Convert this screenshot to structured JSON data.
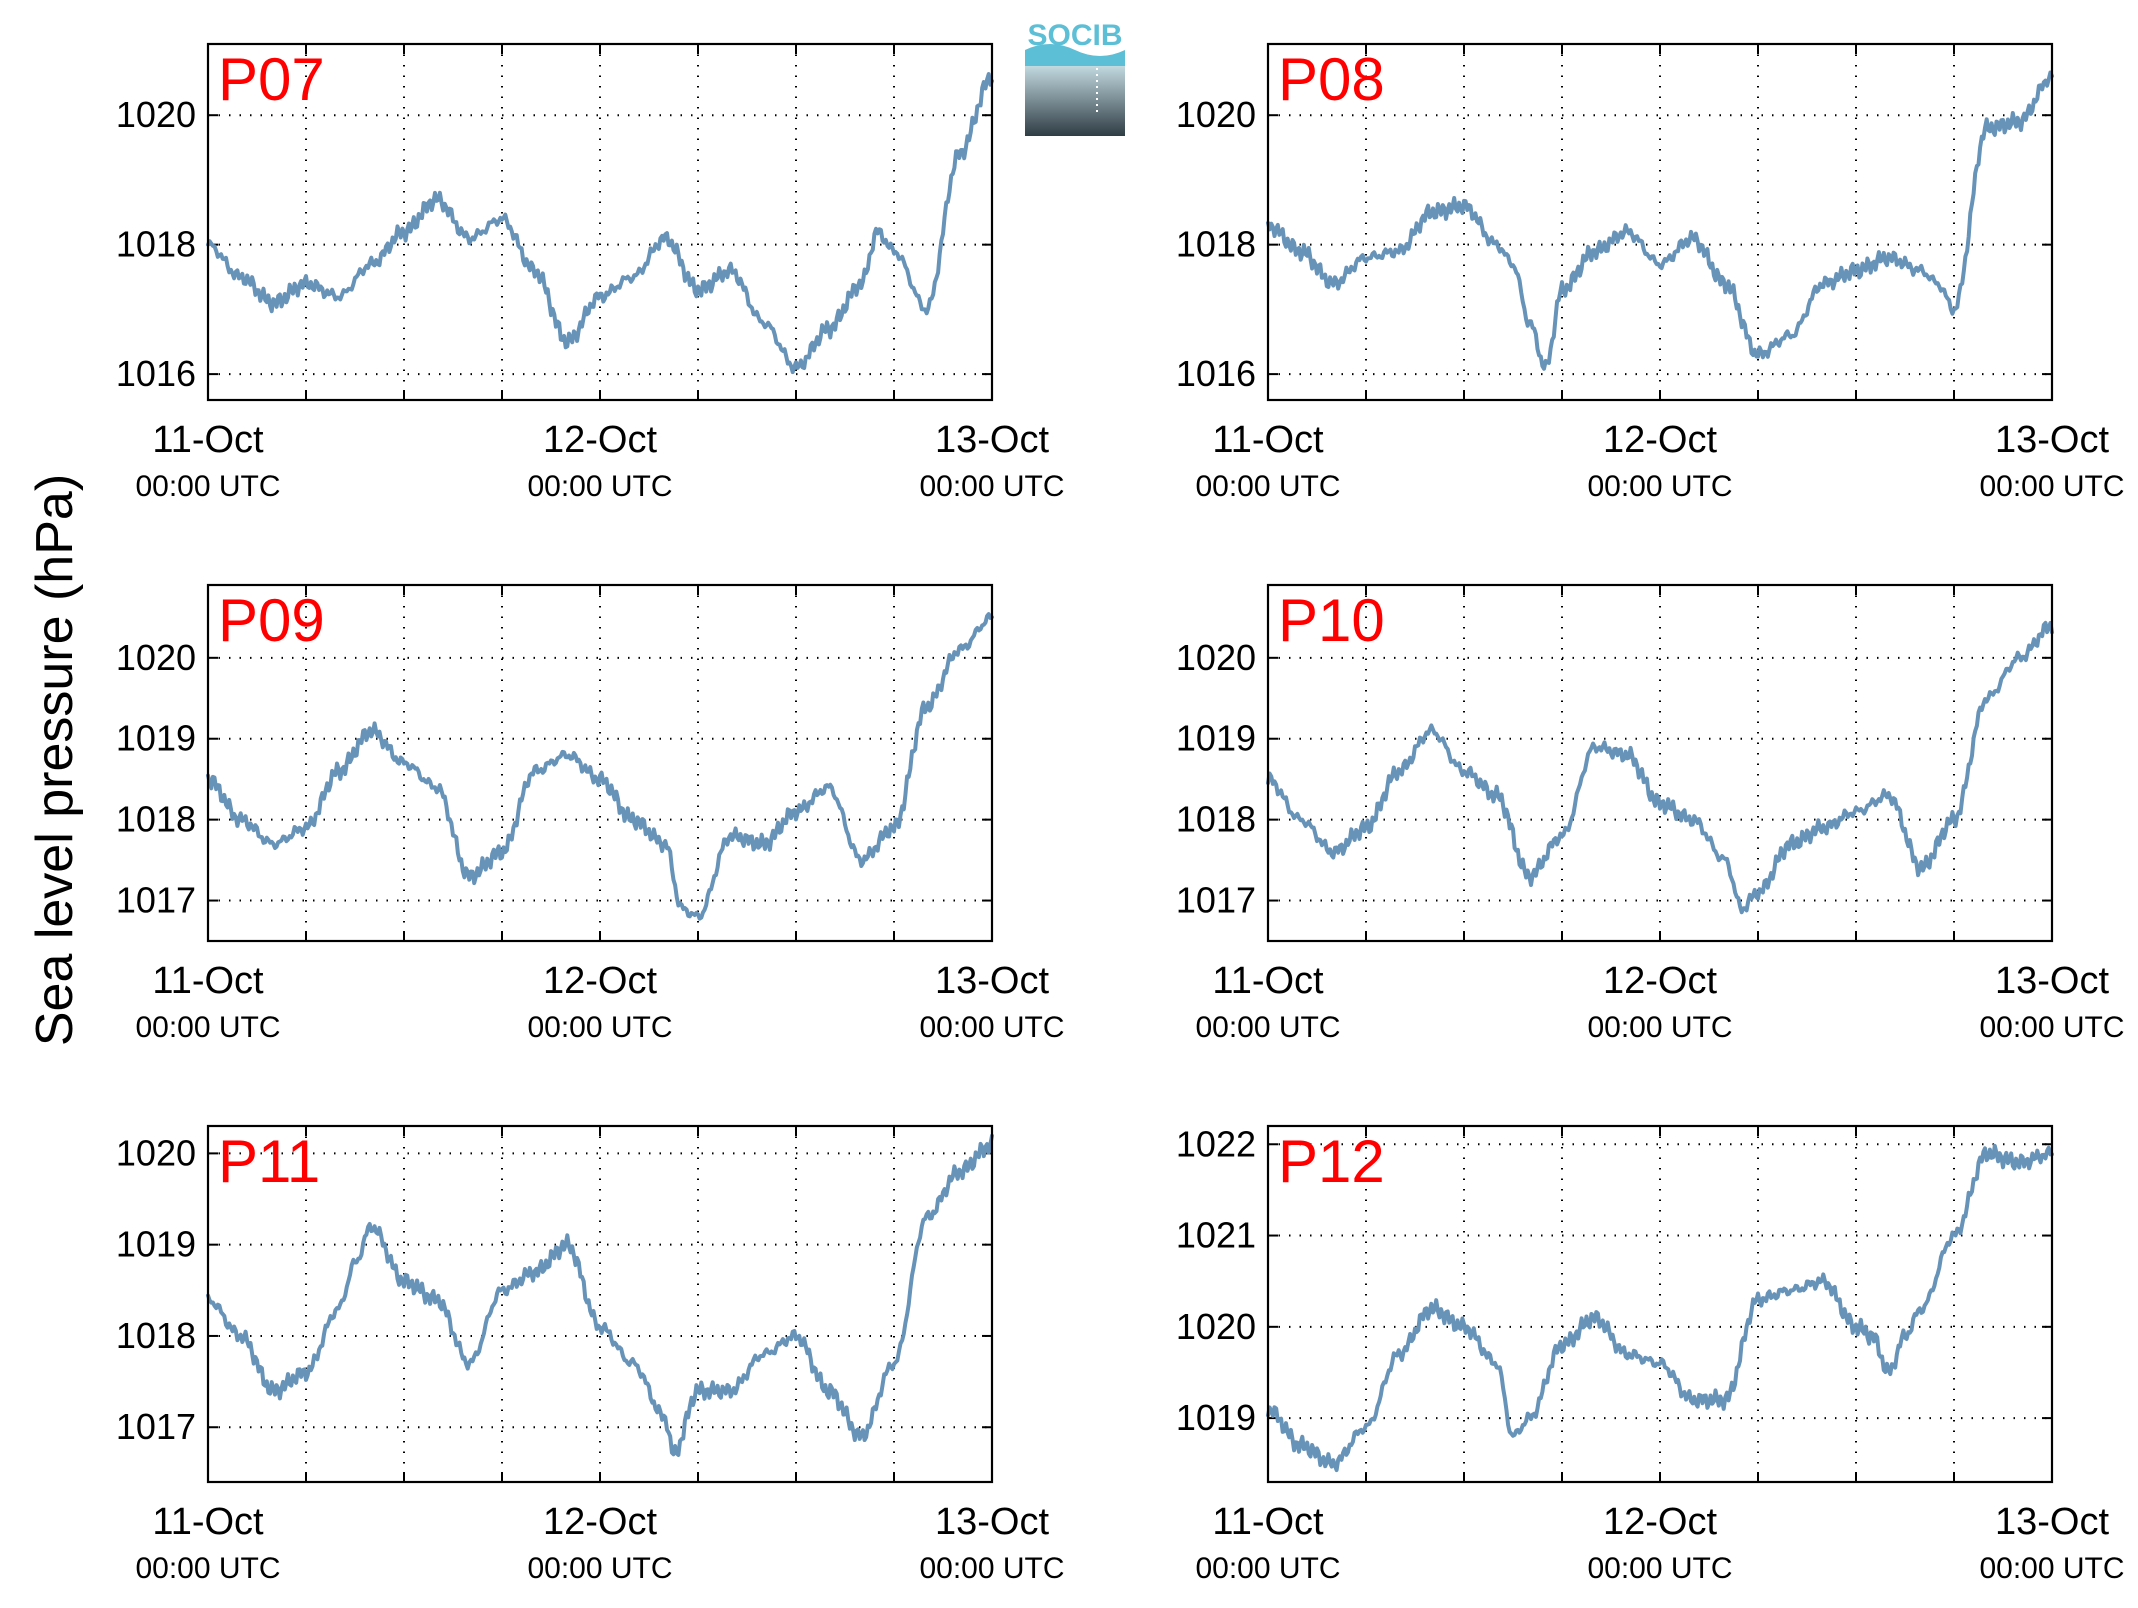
{
  "figure": {
    "ylabel": "Sea level pressure (hPa)",
    "logo_text": "SOCIB",
    "colors": {
      "line": "#6793b8",
      "panel_label": "#ff0000",
      "axes": "#000000",
      "logo_top": "#5dbfd6",
      "logo_bottom": "#2f3c44"
    }
  },
  "chart_data": [
    {
      "type": "line",
      "panel_label": "P07",
      "ylabel": "Sea level pressure (hPa)",
      "x_range": [
        "2015-10-11T00:00",
        "2015-10-13T00:00"
      ],
      "ylim": [
        1015.6,
        1021.1
      ],
      "yticks": [
        1016,
        1018,
        1020
      ],
      "xtick_labels": [
        {
          "date": "11-Oct",
          "time": "00:00 UTC"
        },
        {
          "date": "12-Oct",
          "time": "00:00 UTC"
        },
        {
          "date": "13-Oct",
          "time": "00:00 UTC"
        }
      ],
      "grid": true,
      "x_hours": [
        0,
        2,
        4,
        6,
        8,
        10,
        12,
        14,
        16,
        18,
        20,
        22,
        24,
        26,
        28,
        30,
        32,
        34,
        36,
        38,
        40,
        41,
        42,
        44,
        46,
        48
      ],
      "y": [
        1018.0,
        1017.5,
        1017.1,
        1017.4,
        1017.2,
        1017.7,
        1018.2,
        1018.7,
        1018.1,
        1018.4,
        1017.6,
        1016.5,
        1017.2,
        1017.5,
        1018.1,
        1017.3,
        1017.6,
        1016.8,
        1016.1,
        1016.7,
        1017.4,
        1018.2,
        1017.9,
        1017.0,
        1019.4,
        1020.6
      ]
    },
    {
      "type": "line",
      "panel_label": "P08",
      "ylabel": "Sea level pressure (hPa)",
      "x_range": [
        "2015-10-11T00:00",
        "2015-10-13T00:00"
      ],
      "ylim": [
        1015.6,
        1021.1
      ],
      "yticks": [
        1016,
        1018,
        1020
      ],
      "xtick_labels": [
        {
          "date": "11-Oct",
          "time": "00:00 UTC"
        },
        {
          "date": "12-Oct",
          "time": "00:00 UTC"
        },
        {
          "date": "13-Oct",
          "time": "00:00 UTC"
        }
      ],
      "grid": true,
      "x_hours": [
        0,
        2,
        4,
        6,
        8,
        10,
        12,
        14,
        15,
        16,
        17,
        18,
        20,
        22,
        24,
        26,
        28,
        30,
        32,
        34,
        36,
        38,
        40,
        41,
        42,
        44,
        46,
        48
      ],
      "y": [
        1018.3,
        1017.9,
        1017.4,
        1017.8,
        1017.9,
        1018.5,
        1018.6,
        1018.0,
        1017.7,
        1016.8,
        1016.1,
        1017.3,
        1017.9,
        1018.2,
        1017.7,
        1018.1,
        1017.4,
        1016.3,
        1016.6,
        1017.4,
        1017.6,
        1017.8,
        1017.6,
        1017.4,
        1017.0,
        1019.8,
        1019.9,
        1020.6
      ]
    },
    {
      "type": "line",
      "panel_label": "P09",
      "ylabel": "Sea level pressure (hPa)",
      "x_range": [
        "2015-10-11T00:00",
        "2015-10-13T00:00"
      ],
      "ylim": [
        1016.5,
        1020.9
      ],
      "yticks": [
        1017,
        1018,
        1019,
        1020
      ],
      "xtick_labels": [
        {
          "date": "11-Oct",
          "time": "00:00 UTC"
        },
        {
          "date": "12-Oct",
          "time": "00:00 UTC"
        },
        {
          "date": "13-Oct",
          "time": "00:00 UTC"
        }
      ],
      "grid": true,
      "x_hours": [
        0,
        2,
        4,
        6,
        8,
        10,
        12,
        14,
        16,
        18,
        20,
        22,
        24,
        26,
        28,
        29,
        30,
        32,
        34,
        36,
        38,
        40,
        42,
        44,
        46,
        48
      ],
      "y": [
        1018.5,
        1018.0,
        1017.7,
        1017.9,
        1018.6,
        1019.1,
        1018.7,
        1018.4,
        1017.3,
        1017.6,
        1018.6,
        1018.8,
        1018.5,
        1018.0,
        1017.7,
        1016.9,
        1016.8,
        1017.8,
        1017.7,
        1018.1,
        1018.4,
        1017.5,
        1017.9,
        1019.4,
        1020.1,
        1020.5
      ]
    },
    {
      "type": "line",
      "panel_label": "P10",
      "ylabel": "Sea level pressure (hPa)",
      "x_range": [
        "2015-10-11T00:00",
        "2015-10-13T00:00"
      ],
      "ylim": [
        1016.5,
        1020.9
      ],
      "yticks": [
        1017,
        1018,
        1019,
        1020
      ],
      "xtick_labels": [
        {
          "date": "11-Oct",
          "time": "00:00 UTC"
        },
        {
          "date": "12-Oct",
          "time": "00:00 UTC"
        },
        {
          "date": "13-Oct",
          "time": "00:00 UTC"
        }
      ],
      "grid": true,
      "x_hours": [
        0,
        2,
        4,
        6,
        8,
        10,
        12,
        14,
        16,
        18,
        20,
        22,
        24,
        26,
        28,
        29,
        30,
        32,
        34,
        36,
        38,
        40,
        42,
        44,
        46,
        48
      ],
      "y": [
        1018.5,
        1018.0,
        1017.6,
        1017.9,
        1018.6,
        1019.1,
        1018.6,
        1018.3,
        1017.3,
        1017.8,
        1018.9,
        1018.8,
        1018.2,
        1018.0,
        1017.5,
        1016.9,
        1017.1,
        1017.7,
        1017.9,
        1018.1,
        1018.3,
        1017.4,
        1018.0,
        1019.5,
        1020.0,
        1020.4
      ]
    },
    {
      "type": "line",
      "panel_label": "P11",
      "ylabel": "Sea level pressure (hPa)",
      "x_range": [
        "2015-10-11T00:00",
        "2015-10-13T00:00"
      ],
      "ylim": [
        1016.4,
        1020.3
      ],
      "yticks": [
        1017,
        1018,
        1019,
        1020
      ],
      "xtick_labels": [
        {
          "date": "11-Oct",
          "time": "00:00 UTC"
        },
        {
          "date": "12-Oct",
          "time": "00:00 UTC"
        },
        {
          "date": "13-Oct",
          "time": "00:00 UTC"
        }
      ],
      "grid": true,
      "x_hours": [
        0,
        2,
        4,
        6,
        8,
        9,
        10,
        12,
        14,
        16,
        18,
        20,
        22,
        24,
        26,
        28,
        28.5,
        30,
        32,
        34,
        36,
        38,
        40,
        42,
        44,
        46,
        48
      ],
      "y": [
        1018.4,
        1018.0,
        1017.4,
        1017.6,
        1018.3,
        1018.8,
        1019.2,
        1018.6,
        1018.4,
        1017.7,
        1018.5,
        1018.7,
        1019.0,
        1018.1,
        1017.7,
        1017.1,
        1016.7,
        1017.4,
        1017.4,
        1017.8,
        1018.0,
        1017.4,
        1016.9,
        1017.7,
        1019.3,
        1019.8,
        1020.1
      ]
    },
    {
      "type": "line",
      "panel_label": "P12",
      "ylabel": "Sea level pressure (hPa)",
      "x_range": [
        "2015-10-11T00:00",
        "2015-10-13T00:00"
      ],
      "ylim": [
        1018.3,
        1022.2
      ],
      "yticks": [
        1019,
        1020,
        1021,
        1022
      ],
      "xtick_labels": [
        {
          "date": "11-Oct",
          "time": "00:00 UTC"
        },
        {
          "date": "12-Oct",
          "time": "00:00 UTC"
        },
        {
          "date": "13-Oct",
          "time": "00:00 UTC"
        }
      ],
      "grid": true,
      "x_hours": [
        0,
        2,
        4,
        6,
        8,
        10,
        12,
        14,
        15,
        16,
        18,
        20,
        22,
        24,
        26,
        28,
        30,
        32,
        34,
        36,
        37,
        38,
        39,
        40,
        42,
        44,
        46,
        48
      ],
      "y": [
        1019.1,
        1018.7,
        1018.5,
        1018.9,
        1019.7,
        1020.2,
        1020.0,
        1019.6,
        1018.8,
        1019.0,
        1019.8,
        1020.1,
        1019.7,
        1019.6,
        1019.2,
        1019.2,
        1020.3,
        1020.4,
        1020.5,
        1020.0,
        1019.9,
        1019.5,
        1019.9,
        1020.2,
        1021.0,
        1021.9,
        1021.8,
        1021.9
      ]
    }
  ]
}
